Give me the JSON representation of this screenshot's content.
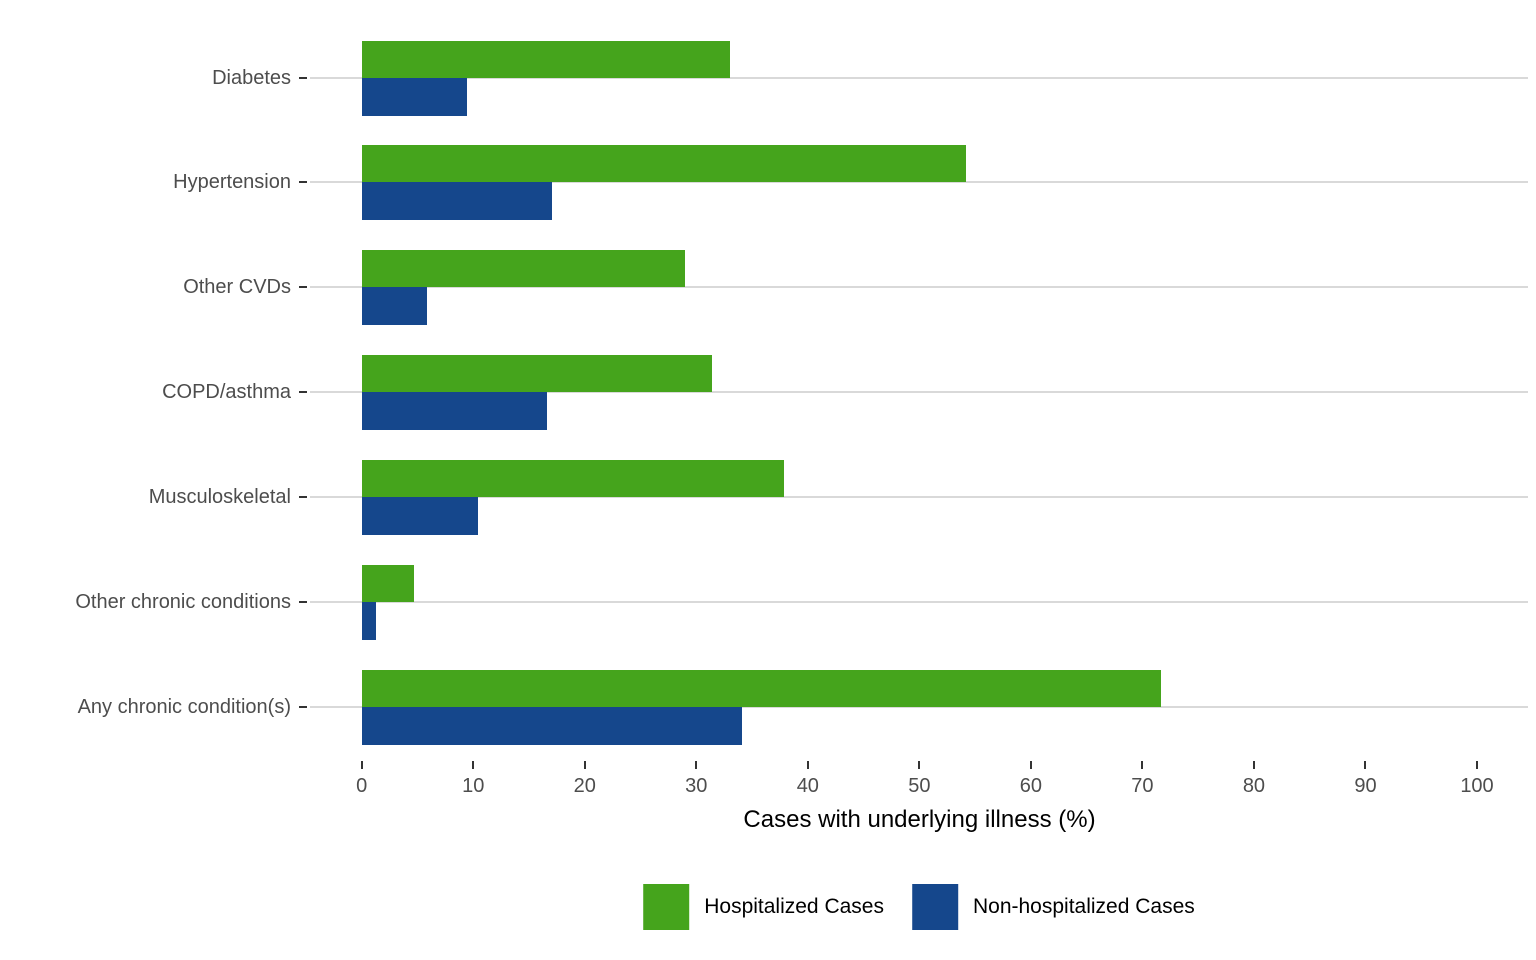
{
  "chart_data": {
    "type": "bar",
    "orientation": "horizontal",
    "title": "",
    "xlabel": "Cases with underlying illness (%)",
    "ylabel": "",
    "xlim": [
      0,
      100
    ],
    "xticks": [
      0,
      10,
      20,
      30,
      40,
      50,
      60,
      70,
      80,
      90,
      100
    ],
    "grid": "horizontal-major-only",
    "legend_position": "bottom-center",
    "background": "#ffffff",
    "gridline_color": "#d9d9d9",
    "tick_color": "#333333",
    "tick_label_color": "#4d4d4d",
    "categories": [
      "Diabetes",
      "Hypertension",
      "Other CVDs",
      "COPD/asthma",
      "Musculoskeletal",
      "Other chronic conditions",
      "Any chronic condition(s)"
    ],
    "series": [
      {
        "name": "Hospitalized Cases",
        "color": "#45a41c",
        "values": [
          33.0,
          54.2,
          29.0,
          31.4,
          37.9,
          4.7,
          71.7
        ]
      },
      {
        "name": "Non-hospitalized Cases",
        "color": "#15478c",
        "values": [
          9.4,
          17.1,
          5.9,
          16.6,
          10.4,
          1.3,
          34.1
        ]
      }
    ]
  }
}
